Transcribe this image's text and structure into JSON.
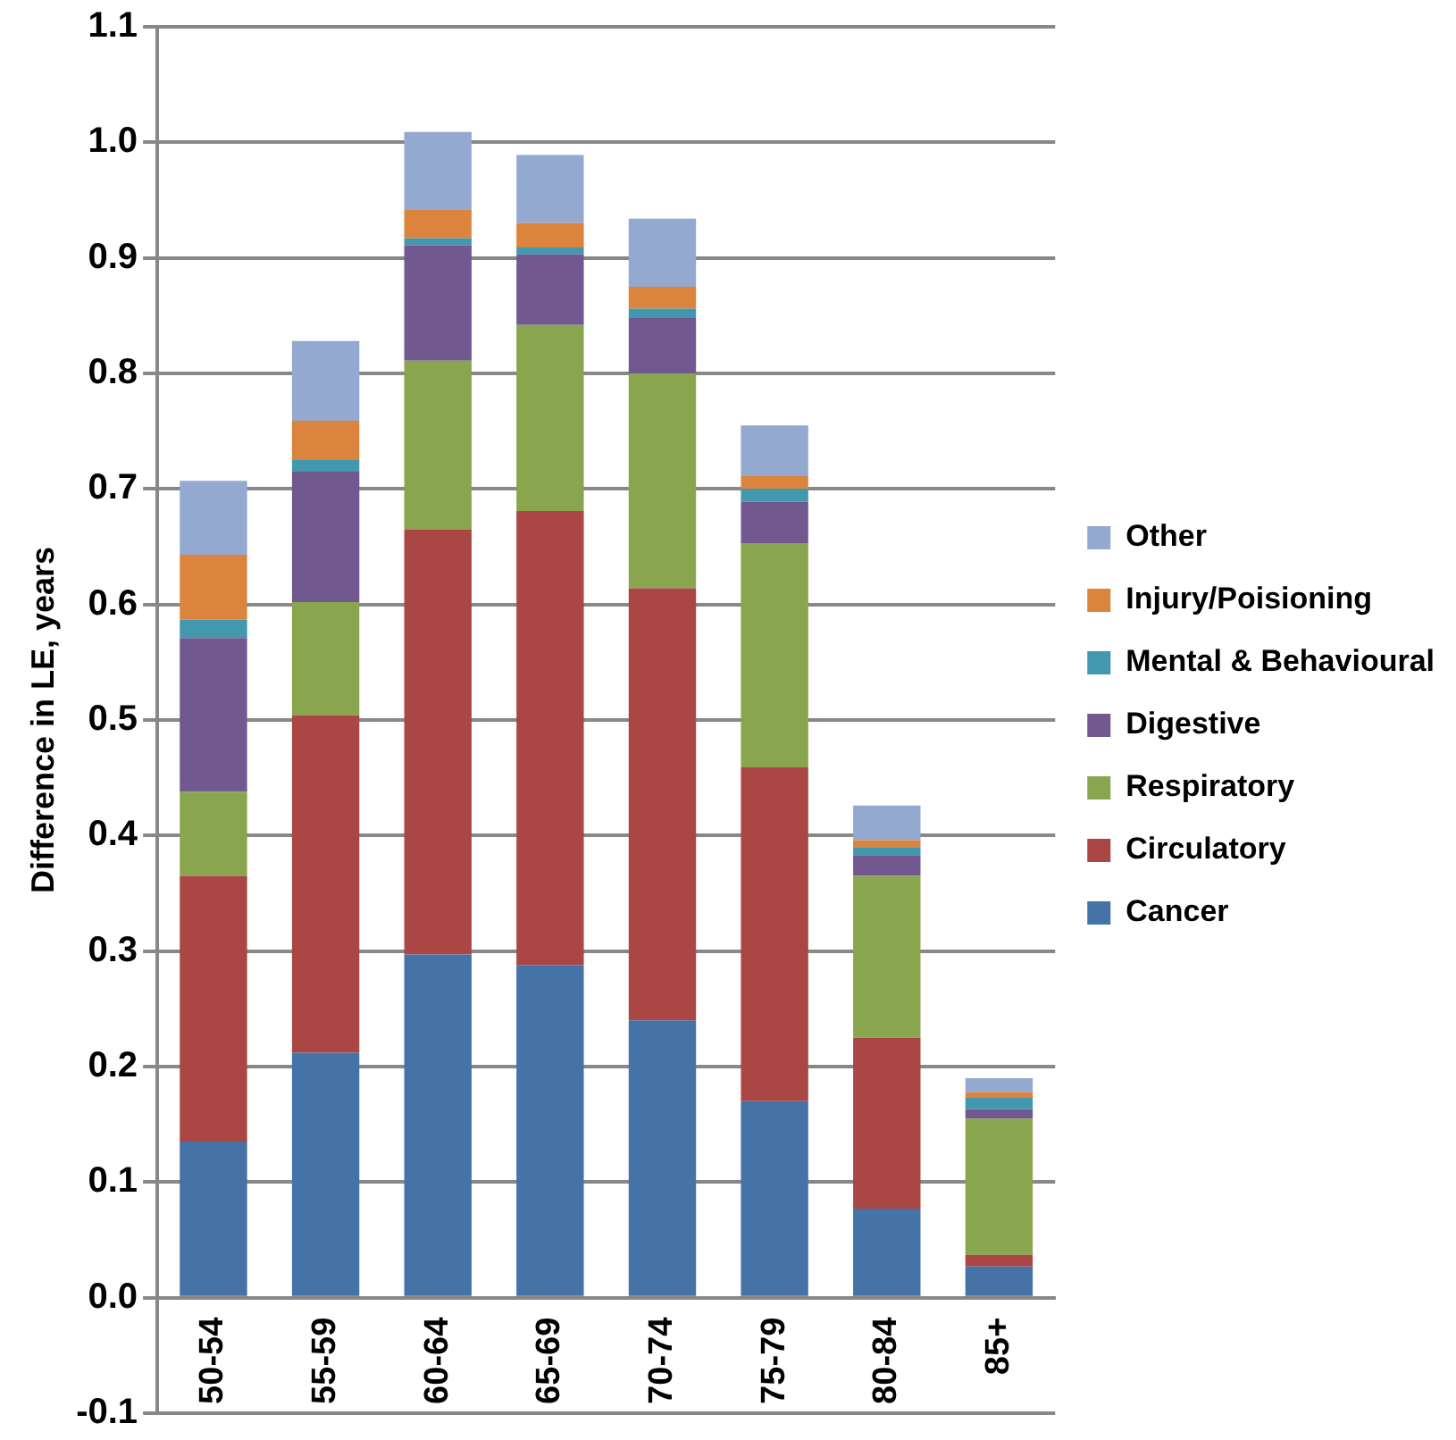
{
  "chart_data": {
    "type": "bar",
    "stacked": true,
    "ylabel": "Difference in LE, years",
    "categories": [
      "50-54",
      "55-59",
      "60-64",
      "65-69",
      "70-74",
      "75-79",
      "80-84",
      "85+"
    ],
    "series": [
      {
        "name": "Cancer",
        "color": "#4572a7",
        "values": [
          0.135,
          0.212,
          0.297,
          0.288,
          0.24,
          0.17,
          0.077,
          0.027
        ]
      },
      {
        "name": "Circulatory",
        "color": "#aa4643",
        "values": [
          0.23,
          0.292,
          0.368,
          0.393,
          0.374,
          0.289,
          0.148,
          0.01
        ]
      },
      {
        "name": "Respiratory",
        "color": "#89a54e",
        "values": [
          0.073,
          0.098,
          0.146,
          0.161,
          0.186,
          0.194,
          0.14,
          0.118
        ]
      },
      {
        "name": "Digestive",
        "color": "#71588f",
        "values": [
          0.133,
          0.113,
          0.1,
          0.061,
          0.048,
          0.036,
          0.018,
          0.008
        ]
      },
      {
        "name": "Mental & Behavioural",
        "color": "#4198af",
        "values": [
          0.016,
          0.01,
          0.006,
          0.006,
          0.008,
          0.011,
          0.007,
          0.01
        ]
      },
      {
        "name": "Injury/Poisioning",
        "color": "#db843d",
        "values": [
          0.056,
          0.034,
          0.025,
          0.021,
          0.019,
          0.011,
          0.006,
          0.005
        ]
      },
      {
        "name": "Other",
        "color": "#93a9cf",
        "values": [
          0.064,
          0.069,
          0.067,
          0.059,
          0.059,
          0.044,
          0.03,
          0.012
        ]
      }
    ],
    "ylim": [
      -0.1,
      1.1
    ],
    "yticks": [
      {
        "value": -0.1,
        "label": "-0.1"
      },
      {
        "value": 0,
        "label": "0.0"
      },
      {
        "value": 0.1,
        "label": "0.1"
      },
      {
        "value": 0.2,
        "label": "0.2"
      },
      {
        "value": 0.3,
        "label": "0.3"
      },
      {
        "value": 0.4,
        "label": "0.4"
      },
      {
        "value": 0.5,
        "label": "0.5"
      },
      {
        "value": 0.6,
        "label": "0.6"
      },
      {
        "value": 0.7,
        "label": "0.7"
      },
      {
        "value": 0.8,
        "label": "0.8"
      },
      {
        "value": 0.9,
        "label": "0.9"
      },
      {
        "value": 1.0,
        "label": "1.0"
      },
      {
        "value": 1.1,
        "label": "1.1"
      }
    ],
    "grid": "y",
    "legend": "right"
  }
}
